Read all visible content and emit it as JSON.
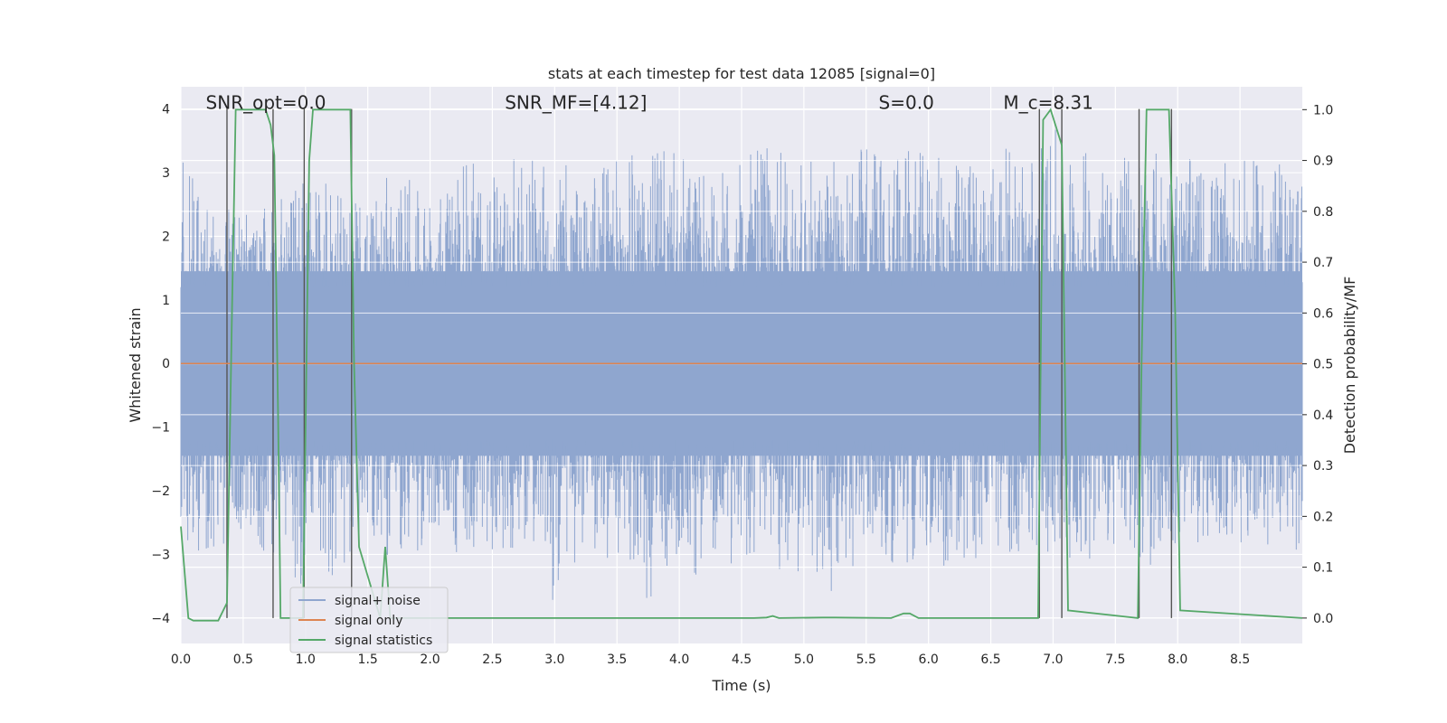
{
  "chart_data": {
    "type": "line",
    "title": "stats at each timestep for test data 12085 [signal=0]",
    "xlabel": "Time (s)",
    "ylabel": "Whitened strain",
    "ylabel_right": "Detection probability/MF",
    "xlim": [
      0,
      9
    ],
    "ylim": [
      -4.4,
      4.35
    ],
    "ylim_right": [
      -0.05,
      1.045
    ],
    "x_ticks": [
      "0.0",
      "0.5",
      "1.0",
      "1.5",
      "2.0",
      "2.5",
      "3.0",
      "3.5",
      "4.0",
      "4.5",
      "5.0",
      "5.5",
      "6.0",
      "6.5",
      "7.0",
      "7.5",
      "8.0",
      "8.5"
    ],
    "x_tick_values": [
      0,
      0.5,
      1,
      1.5,
      2,
      2.5,
      3,
      3.5,
      4,
      4.5,
      5,
      5.5,
      6,
      6.5,
      7,
      7.5,
      8,
      8.5
    ],
    "y_ticks": [
      "4",
      "3",
      "2",
      "1",
      "0",
      "−1",
      "−2",
      "−3",
      "−4"
    ],
    "y_tick_values": [
      4,
      3,
      2,
      1,
      0,
      -1,
      -2,
      -3,
      -4
    ],
    "y_ticks_right": [
      "1.0",
      "0.9",
      "0.8",
      "0.7",
      "0.6",
      "0.5",
      "0.4",
      "0.3",
      "0.2",
      "0.1",
      "0.0"
    ],
    "y_tick_values_right": [
      1.0,
      0.9,
      0.8,
      0.7,
      0.6,
      0.5,
      0.4,
      0.3,
      0.2,
      0.1,
      0.0
    ],
    "grid": true,
    "legend_position": "lower-left",
    "annotations": [
      {
        "text": "SNR_opt=0.0",
        "x": 0.2,
        "y": 4.0
      },
      {
        "text": "SNR_MF=[4.12]",
        "x": 2.6,
        "y": 4.0
      },
      {
        "text": "S=0.0",
        "x": 5.6,
        "y": 4.0
      },
      {
        "text": "M_c=8.31",
        "x": 6.6,
        "y": 4.0
      }
    ],
    "series": [
      {
        "name": "signal+ noise",
        "color": "#8fa6cf",
        "axis": "left",
        "envelope_x": [
          0.0,
          0.25,
          0.5,
          0.75,
          1.0,
          1.25,
          1.5,
          1.75,
          2.0,
          2.25,
          2.5,
          2.75,
          3.0,
          3.25,
          3.5,
          3.75,
          4.0,
          4.25,
          4.5,
          4.75,
          5.0,
          5.25,
          5.5,
          5.75,
          6.0,
          6.25,
          6.5,
          6.75,
          7.0,
          7.25,
          7.5,
          7.75,
          8.0,
          8.25,
          8.5,
          8.75,
          9.0
        ],
        "envelope_upper": [
          3.4,
          2.4,
          2.6,
          2.5,
          2.9,
          2.8,
          2.5,
          3.2,
          2.5,
          3.1,
          3.3,
          3.2,
          3.2,
          3.0,
          3.3,
          3.4,
          3.3,
          2.9,
          3.2,
          3.5,
          3.2,
          3.2,
          3.6,
          3.4,
          3.3,
          3.2,
          3.4,
          3.4,
          3.7,
          3.4,
          3.3,
          3.4,
          3.3,
          3.1,
          3.2,
          3.2,
          3.1
        ],
        "envelope_lower": [
          -2.6,
          -3.4,
          -2.9,
          -3.0,
          -3.6,
          -3.3,
          -2.7,
          -3.2,
          -2.8,
          -3.0,
          -3.0,
          -2.9,
          -3.8,
          -3.2,
          -3.0,
          -3.8,
          -3.0,
          -3.6,
          -3.0,
          -3.2,
          -3.4,
          -3.9,
          -2.8,
          -3.2,
          -3.0,
          -3.4,
          -3.0,
          -3.0,
          -3.0,
          -3.1,
          -3.0,
          -3.2,
          -3.0,
          -2.8,
          -2.9,
          -2.9,
          -3.2
        ]
      },
      {
        "name": "signal only",
        "color": "#dd8452",
        "axis": "left",
        "x": [
          0.0,
          9.0
        ],
        "y": [
          0.0,
          0.0
        ]
      },
      {
        "name": "signal statistics",
        "color": "#55a868",
        "axis": "right",
        "x": [
          0.0,
          0.06,
          0.1,
          0.3,
          0.37,
          0.41,
          0.44,
          0.47,
          0.68,
          0.72,
          0.75,
          0.78,
          0.8,
          0.98,
          1.03,
          1.06,
          1.36,
          1.39,
          1.43,
          1.6,
          1.64,
          1.68,
          4.6,
          4.7,
          4.75,
          4.8,
          5.15,
          5.25,
          5.7,
          5.8,
          5.85,
          5.92,
          6.88,
          6.92,
          6.98,
          7.07,
          7.12,
          7.68,
          7.71,
          7.75,
          7.93,
          7.98,
          8.02,
          9.0
        ],
        "y": [
          0.18,
          0.0,
          -0.005,
          -0.005,
          0.03,
          0.6,
          1.0,
          1.0,
          1.0,
          0.97,
          0.91,
          0.4,
          0.0,
          0.0,
          0.9,
          1.0,
          1.0,
          0.5,
          0.14,
          0.0,
          0.14,
          0.0,
          0.0,
          0.001,
          0.004,
          0.0,
          0.001,
          0.001,
          0.0,
          0.009,
          0.009,
          0.0,
          0.0,
          0.98,
          1.0,
          0.93,
          0.015,
          0.0,
          0.5,
          1.0,
          1.0,
          0.6,
          0.015,
          0.0
        ]
      }
    ],
    "vertical_lines": [
      0.37,
      0.74,
      0.99,
      1.37,
      6.89,
      7.07,
      7.69,
      7.95
    ]
  }
}
